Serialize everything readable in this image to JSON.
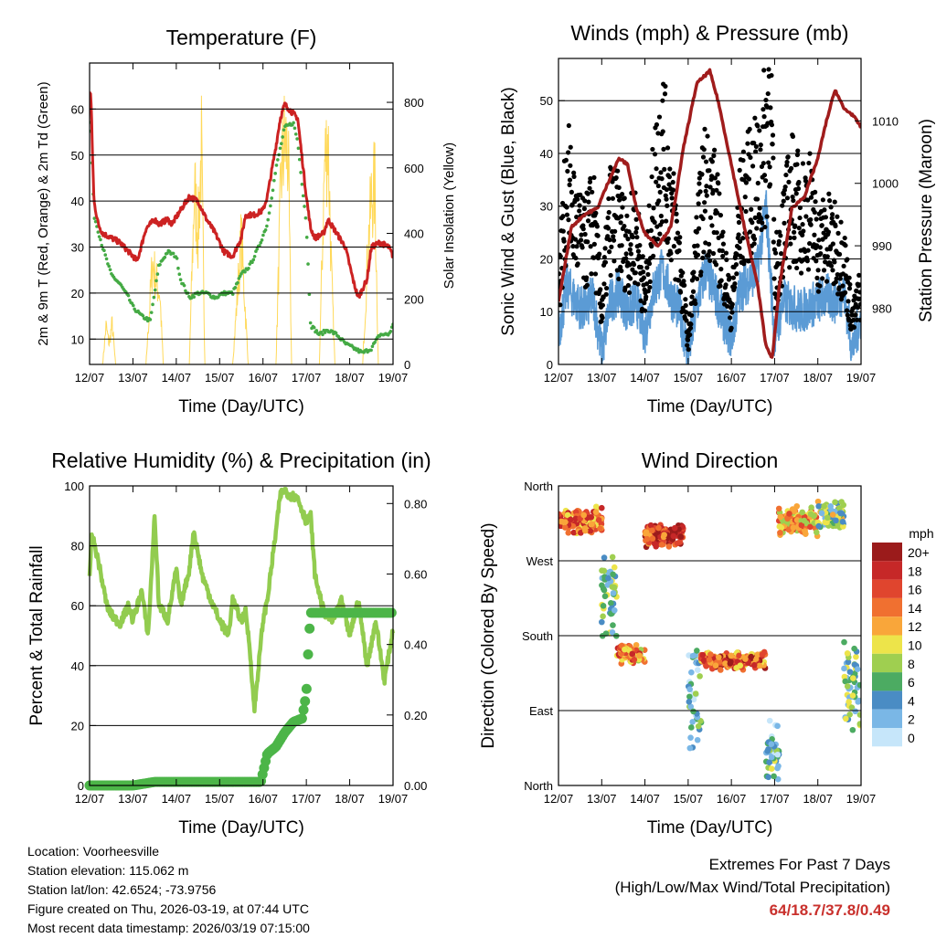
{
  "colors": {
    "temp_red": "#cc2222",
    "dew_green": "#44aa44",
    "solar_yellow": "#ffd95a",
    "gust_black": "#000000",
    "wind_blue": "#5b9bd5",
    "pressure_maroon": "#a01c1c",
    "rh_light_green": "#92cc4f",
    "precip_green": "#4cb548",
    "extreme_red": "#c9302c"
  },
  "chart_data": [
    {
      "type": "line",
      "title": "Temperature (F)",
      "xlabel": "Time (Day/UTC)",
      "ylabel": "2m & 9m T (Red, Orange) & 2m Td (Green)",
      "y2label": "Solar Insolation (Yellow)",
      "x_ticks": [
        "12/07",
        "13/07",
        "14/07",
        "15/07",
        "16/07",
        "17/07",
        "18/07",
        "19/07"
      ],
      "xlim": [
        0,
        7
      ],
      "ylim": [
        4.5,
        70
      ],
      "y_ticks": [
        10,
        20,
        30,
        40,
        50,
        60
      ],
      "y2lim": [
        0,
        920
      ],
      "y2_ticks": [
        0,
        200,
        400,
        600,
        800
      ],
      "grid": true,
      "series": [
        {
          "name": "2m T",
          "color": "#cc2222",
          "x": [
            0,
            0.03,
            0.1,
            0.2,
            0.3,
            0.5,
            0.7,
            0.9,
            1.0,
            1.1,
            1.3,
            1.5,
            1.6,
            1.8,
            1.9,
            2.1,
            2.3,
            2.5,
            2.7,
            2.9,
            3.1,
            3.3,
            3.5,
            3.6,
            3.8,
            4.0,
            4.1,
            4.3,
            4.4,
            4.5,
            4.7,
            4.8,
            5.0,
            5.1,
            5.2,
            5.4,
            5.5,
            5.7,
            5.9,
            6.1,
            6.2,
            6.4,
            6.5,
            6.7,
            6.9,
            7.0
          ],
          "values": [
            64,
            63,
            40,
            35,
            33,
            32,
            31,
            29,
            28,
            27,
            34,
            36,
            35,
            36,
            35,
            38,
            41,
            40,
            36,
            33,
            29,
            28,
            32,
            37,
            37,
            38,
            41,
            52,
            58,
            61,
            59,
            58,
            41,
            34,
            32,
            33,
            36,
            33,
            30,
            22,
            19,
            23,
            30,
            31,
            30,
            28
          ]
        },
        {
          "name": "2m Td",
          "color": "#44aa44",
          "x": [
            0,
            0.03,
            0.1,
            0.3,
            0.5,
            0.7,
            0.9,
            1.0,
            1.2,
            1.4,
            1.5,
            1.6,
            1.8,
            2.0,
            2.1,
            2.3,
            2.5,
            2.7,
            2.9,
            3.1,
            3.3,
            3.5,
            3.7,
            3.9,
            4.1,
            4.3,
            4.5,
            4.7,
            4.8,
            5.0,
            5.1,
            5.3,
            5.5,
            5.7,
            5.9,
            6.1,
            6.3,
            6.5,
            6.7,
            6.9,
            7.0
          ],
          "values": [
            57,
            55,
            37,
            30,
            24,
            22,
            19,
            17,
            15,
            14,
            20,
            26,
            29,
            28,
            23,
            19,
            20,
            20,
            19,
            20,
            20,
            24,
            26,
            30,
            35,
            47,
            56,
            57,
            53,
            35,
            13,
            11,
            12,
            11,
            9,
            8,
            7,
            8,
            11,
            11,
            13
          ]
        },
        {
          "name": "Solar Insolation",
          "axis": "y2",
          "color": "#ffd95a",
          "x": [
            0.3,
            0.38,
            0.45,
            0.52,
            0.6,
            1.3,
            1.45,
            1.55,
            1.62,
            1.7,
            2.3,
            2.42,
            2.5,
            2.58,
            2.66,
            3.3,
            3.42,
            3.5,
            3.58,
            3.66,
            4.3,
            4.42,
            4.5,
            4.58,
            4.66,
            5.3,
            5.42,
            5.5,
            5.58,
            5.66,
            6.3,
            6.42,
            6.5,
            6.58,
            6.66
          ],
          "values": [
            0,
            150,
            80,
            160,
            0,
            0,
            400,
            320,
            280,
            0,
            0,
            700,
            500,
            850,
            0,
            0,
            300,
            500,
            250,
            0,
            0,
            750,
            880,
            820,
            0,
            0,
            780,
            900,
            350,
            0,
            0,
            450,
            650,
            700,
            0
          ]
        }
      ]
    },
    {
      "type": "line",
      "title": "Winds (mph) & Pressure (mb)",
      "xlabel": "Time (Day/UTC)",
      "ylabel": "Sonic Wind & Gust (Blue, Black)",
      "y2label": "Station Pressure (Maroon)",
      "x_ticks": [
        "12/07",
        "13/07",
        "14/07",
        "15/07",
        "16/07",
        "17/07",
        "18/07",
        "19/07"
      ],
      "xlim": [
        0,
        7
      ],
      "ylim": [
        0,
        58
      ],
      "y_ticks": [
        0,
        10,
        20,
        30,
        40,
        50
      ],
      "y2lim": [
        971,
        1020
      ],
      "y2_ticks": [
        980,
        990,
        1000,
        1010
      ],
      "grid": true,
      "series": [
        {
          "name": "Sonic Wind",
          "color": "#5b9bd5",
          "x": [
            0,
            0.2,
            0.4,
            0.6,
            0.8,
            1.0,
            1.2,
            1.4,
            1.6,
            1.8,
            2.0,
            2.2,
            2.4,
            2.6,
            2.8,
            3.0,
            3.2,
            3.4,
            3.6,
            3.8,
            4.0,
            4.2,
            4.4,
            4.6,
            4.8,
            5.0,
            5.2,
            5.4,
            5.6,
            5.8,
            6.0,
            6.2,
            6.4,
            6.6,
            6.8,
            7.0
          ],
          "values": [
            6,
            15,
            12,
            10,
            13,
            2,
            12,
            14,
            10,
            12,
            6,
            14,
            18,
            13,
            10,
            2,
            11,
            18,
            14,
            9,
            5,
            14,
            16,
            18,
            30,
            5,
            12,
            11,
            10,
            11,
            12,
            13,
            12,
            14,
            3,
            9
          ]
        },
        {
          "name": "Gust",
          "color": "#000000",
          "x": [
            0,
            0.2,
            0.4,
            0.6,
            0.8,
            1.0,
            1.2,
            1.4,
            1.6,
            1.8,
            2.0,
            2.2,
            2.4,
            2.6,
            2.8,
            3.0,
            3.2,
            3.4,
            3.6,
            3.8,
            4.0,
            4.2,
            4.4,
            4.6,
            4.8,
            4.9,
            5.0,
            5.2,
            5.4,
            5.6,
            5.8,
            6.0,
            6.2,
            6.4,
            6.6,
            6.8,
            7.0
          ],
          "values": [
            14,
            34,
            26,
            22,
            28,
            10,
            28,
            26,
            22,
            25,
            12,
            32,
            42,
            30,
            20,
            4,
            22,
            34,
            30,
            20,
            10,
            28,
            32,
            34,
            42,
            55,
            16,
            25,
            32,
            28,
            30,
            22,
            24,
            22,
            20,
            8,
            14
          ]
        },
        {
          "name": "Station Pressure",
          "axis": "y2",
          "color": "#a01c1c",
          "x": [
            0,
            0.3,
            0.6,
            0.9,
            1.2,
            1.4,
            1.6,
            1.8,
            2.0,
            2.3,
            2.6,
            2.9,
            3.2,
            3.5,
            3.7,
            4.0,
            4.3,
            4.6,
            4.8,
            4.95,
            5.1,
            5.4,
            5.7,
            6.0,
            6.2,
            6.4,
            6.6,
            6.8,
            7.0
          ],
          "values": [
            981,
            993,
            995,
            996,
            1001,
            1004,
            1003,
            996,
            992,
            990,
            993,
            1006,
            1016,
            1018,
            1013,
            1003,
            993,
            984,
            974,
            972,
            983,
            996,
            998,
            1004,
            1010,
            1015,
            1012,
            1011,
            1009
          ]
        }
      ]
    },
    {
      "type": "line",
      "title": "Relative Humidity (%) & Precipitation (in)",
      "xlabel": "Time (Day/UTC)",
      "ylabel": "Percent & Total Rainfall",
      "x_ticks": [
        "12/07",
        "13/07",
        "14/07",
        "15/07",
        "16/07",
        "17/07",
        "18/07",
        "19/07"
      ],
      "xlim": [
        0,
        7
      ],
      "ylim": [
        0,
        100
      ],
      "y_ticks": [
        0,
        20,
        40,
        60,
        80,
        100
      ],
      "y2lim": [
        0,
        0.85
      ],
      "y2_ticks": [
        "0.00",
        "0.20",
        "0.40",
        "0.60",
        "0.80"
      ],
      "grid": true,
      "series": [
        {
          "name": "Relative Humidity",
          "color": "#92cc4f",
          "x": [
            0,
            0.05,
            0.2,
            0.4,
            0.5,
            0.7,
            0.9,
            1.0,
            1.2,
            1.35,
            1.5,
            1.6,
            1.7,
            1.8,
            2.0,
            2.1,
            2.3,
            2.4,
            2.6,
            2.8,
            3.0,
            3.2,
            3.3,
            3.5,
            3.6,
            3.7,
            3.8,
            4.0,
            4.1,
            4.3,
            4.4,
            4.5,
            4.6,
            4.8,
            5.0,
            5.1,
            5.2,
            5.4,
            5.6,
            5.8,
            6.0,
            6.2,
            6.4,
            6.6,
            6.8,
            7.0
          ],
          "values": [
            70,
            84,
            75,
            60,
            57,
            54,
            60,
            55,
            65,
            50,
            90,
            60,
            58,
            55,
            72,
            60,
            72,
            85,
            70,
            62,
            55,
            50,
            62,
            55,
            58,
            45,
            25,
            55,
            62,
            85,
            97,
            99,
            97,
            96,
            88,
            90,
            70,
            58,
            55,
            62,
            50,
            62,
            40,
            55,
            35,
            52
          ]
        },
        {
          "name": "Total Precipitation",
          "axis": "y2",
          "color": "#4cb548",
          "x": [
            0,
            1.0,
            1.5,
            2.0,
            3.0,
            3.95,
            4.1,
            4.3,
            4.5,
            4.7,
            4.9,
            5.0,
            5.05,
            5.1,
            5.3,
            5.6,
            6.0,
            6.5,
            7.0
          ],
          "values": [
            0,
            0,
            0.01,
            0.01,
            0.01,
            0.01,
            0.09,
            0.11,
            0.15,
            0.18,
            0.19,
            0.26,
            0.4,
            0.49,
            0.49,
            0.49,
            0.49,
            0.49,
            0.49
          ]
        }
      ]
    },
    {
      "type": "scatter",
      "title": "Wind Direction",
      "xlabel": "Time (Day/UTC)",
      "ylabel": "Direction (Colored By Speed)",
      "x_ticks": [
        "12/07",
        "13/07",
        "14/07",
        "15/07",
        "16/07",
        "17/07",
        "18/07",
        "19/07"
      ],
      "xlim": [
        0,
        7
      ],
      "ylim": [
        0,
        360
      ],
      "y_tick_labels": [
        "North",
        "East",
        "South",
        "West",
        "North"
      ],
      "legend_title": "mph",
      "legend_labels": [
        "20+",
        "18",
        "16",
        "14",
        "12",
        "10",
        "8",
        "6",
        "4",
        "2",
        "0"
      ],
      "legend_colors": [
        "#9b1b1b",
        "#c62828",
        "#e0452e",
        "#f07030",
        "#f9a63a",
        "#ede44a",
        "#9fcf50",
        "#4cab62",
        "#4a8cc4",
        "#7ab7e6",
        "#c6e6fa"
      ],
      "legend_position": "right",
      "groups": [
        {
          "t0": 0.0,
          "t1": 1.0,
          "dir_mean": 318,
          "dir_spread": 18,
          "speed_mean": 14
        },
        {
          "t0": 1.0,
          "t1": 1.35,
          "dir_mean": 230,
          "dir_spread": 60,
          "speed_mean": 6
        },
        {
          "t0": 1.35,
          "t1": 2.0,
          "dir_mean": 158,
          "dir_spread": 12,
          "speed_mean": 13
        },
        {
          "t0": 2.0,
          "t1": 2.9,
          "dir_mean": 300,
          "dir_spread": 16,
          "speed_mean": 17
        },
        {
          "t0": 3.0,
          "t1": 3.3,
          "dir_mean": 100,
          "dir_spread": 80,
          "speed_mean": 4
        },
        {
          "t0": 3.3,
          "t1": 4.8,
          "dir_mean": 150,
          "dir_spread": 12,
          "speed_mean": 15
        },
        {
          "t0": 4.8,
          "t1": 5.1,
          "dir_mean": 40,
          "dir_spread": 40,
          "speed_mean": 5
        },
        {
          "t0": 5.1,
          "t1": 6.0,
          "dir_mean": 318,
          "dir_spread": 20,
          "speed_mean": 12
        },
        {
          "t0": 6.0,
          "t1": 6.6,
          "dir_mean": 325,
          "dir_spread": 18,
          "speed_mean": 7
        },
        {
          "t0": 6.6,
          "t1": 7.0,
          "dir_mean": 120,
          "dir_spread": 60,
          "speed_mean": 6
        }
      ]
    }
  ],
  "footer": {
    "location": "Location: Voorheesville",
    "elevation": "Station elevation: 115.062 m",
    "latlon": "Station lat/lon: 42.6524; -73.9756",
    "created": "Figure created on Thu, 2026-03-19, at 07:44 UTC",
    "recent": "Most recent data timestamp: 2026/03/19 07:15:00"
  },
  "extremes": {
    "title": "Extremes For Past 7 Days",
    "subtitle": "(High/Low/Max Wind/Total Precipitation)",
    "values": "64/18.7/37.8/0.49"
  }
}
